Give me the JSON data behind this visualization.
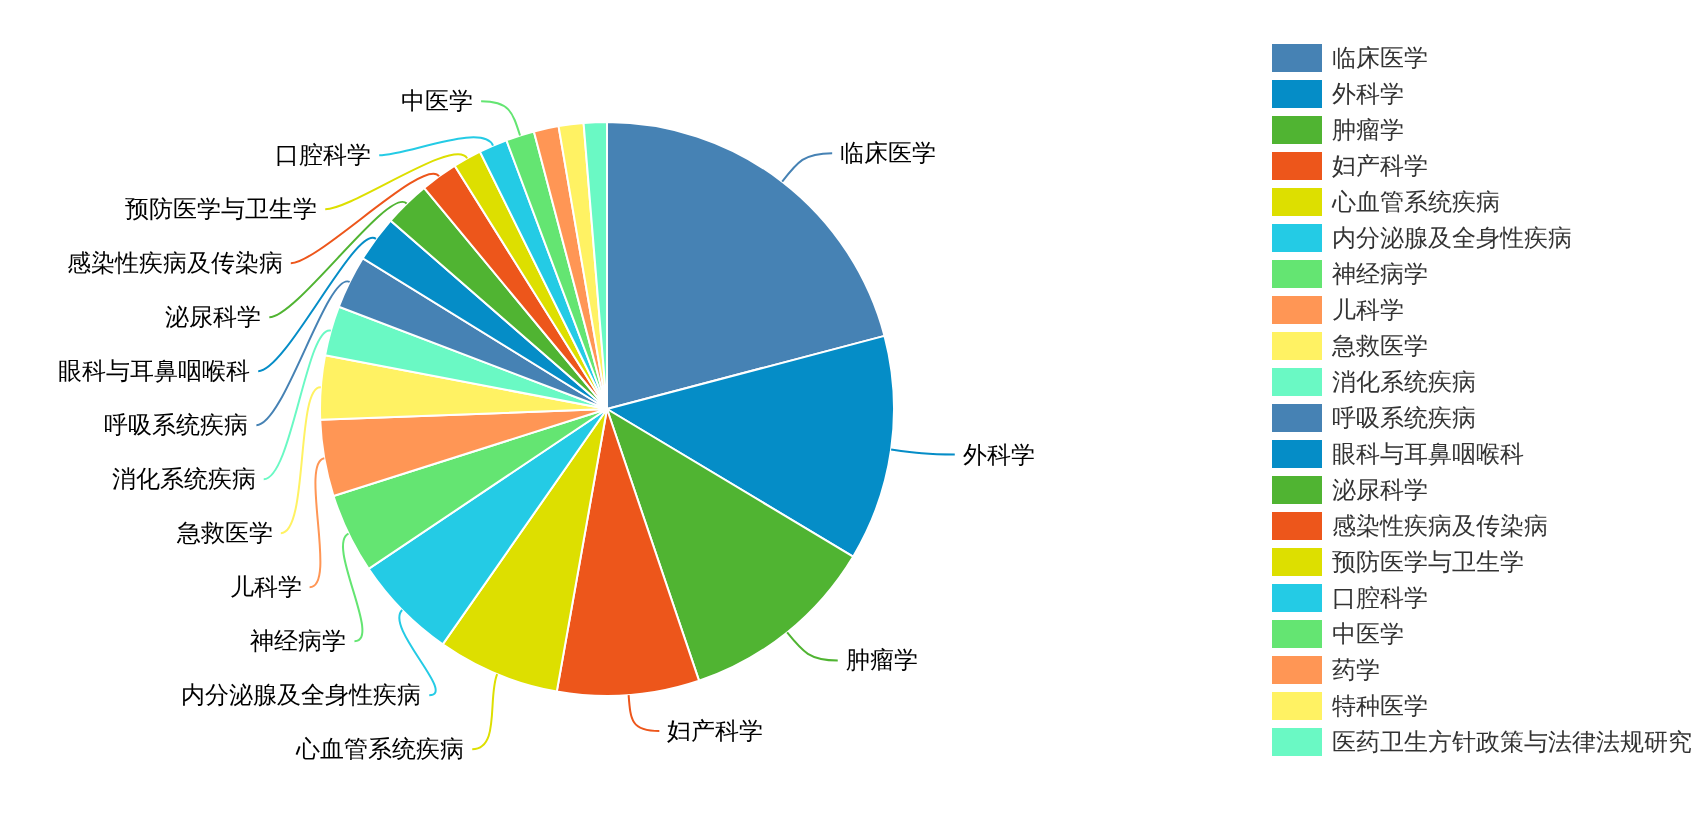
{
  "chart_data": {
    "type": "pie",
    "categories": [
      "临床医学",
      "外科学",
      "肿瘤学",
      "妇产科学",
      "心血管系统疾病",
      "内分泌腺及全身性疾病",
      "神经病学",
      "儿科学",
      "急救医学",
      "消化系统疾病",
      "呼吸系统疾病",
      "眼科与耳鼻咽喉科",
      "泌尿科学",
      "感染性疾病及传染病",
      "预防医学与卫生学",
      "口腔科学",
      "中医学",
      "药学",
      "特种医学",
      "医药卫生方针政策与法律法规研究"
    ],
    "values": [
      20.9,
      12.7,
      11.2,
      8.0,
      6.9,
      5.9,
      4.5,
      4.3,
      3.6,
      2.8,
      3.0,
      2.6,
      2.6,
      2.1,
      1.6,
      1.6,
      1.6,
      1.4,
      1.4,
      1.3
    ],
    "colors": [
      "#4682b4",
      "#058dc7",
      "#50b432",
      "#ed561b",
      "#dddf00",
      "#24cbe5",
      "#64e572",
      "#ff9655",
      "#fff263",
      "#6af9c4",
      "#4682b4",
      "#058dc7",
      "#50b432",
      "#ed561b",
      "#dddf00",
      "#24cbe5",
      "#64e572",
      "#ff9655",
      "#fff263",
      "#6af9c4"
    ],
    "legend": "right"
  }
}
